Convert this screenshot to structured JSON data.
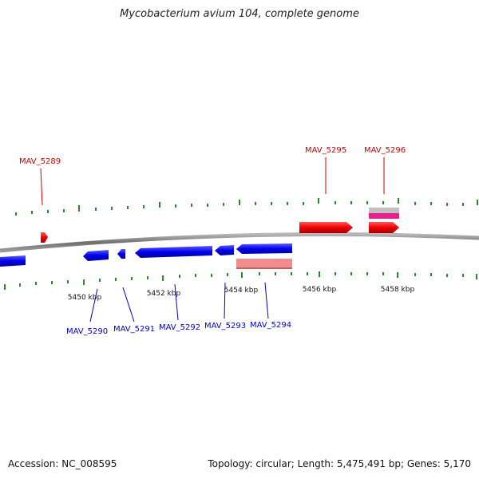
{
  "title": "Mycobacterium avium 104, complete genome",
  "footer": {
    "accession": "Accession: NC_008595",
    "topology": "Topology: circular; Length: 5,475,491 bp; Genes: 5,170"
  },
  "colors": {
    "forward_gene": "#ff0000",
    "reverse_gene": "#0000ff",
    "forward_label": "#cc0000",
    "reverse_label": "#0000cc",
    "rna_grey": "#c0c0c0",
    "rna_magenta": "#e8208c",
    "pseudo_pink": "#f08c8c",
    "backbone": "#8c8c8c",
    "tick": "#2a8a2a"
  },
  "scale": {
    "unit": "kbp",
    "tick_labels": [
      "5450 kbp",
      "5452 kbp",
      "5454 kbp",
      "5456 kbp",
      "5458 kbp"
    ]
  },
  "genes": [
    {
      "label": "MAV_5289",
      "strand": "forward"
    },
    {
      "label": "MAV_5290",
      "strand": "reverse"
    },
    {
      "label": "MAV_5291",
      "strand": "reverse"
    },
    {
      "label": "MAV_5292",
      "strand": "reverse"
    },
    {
      "label": "MAV_5293",
      "strand": "reverse"
    },
    {
      "label": "MAV_5294",
      "strand": "reverse"
    },
    {
      "label": "MAV_5295",
      "strand": "forward"
    },
    {
      "label": "MAV_5296",
      "strand": "forward"
    }
  ]
}
